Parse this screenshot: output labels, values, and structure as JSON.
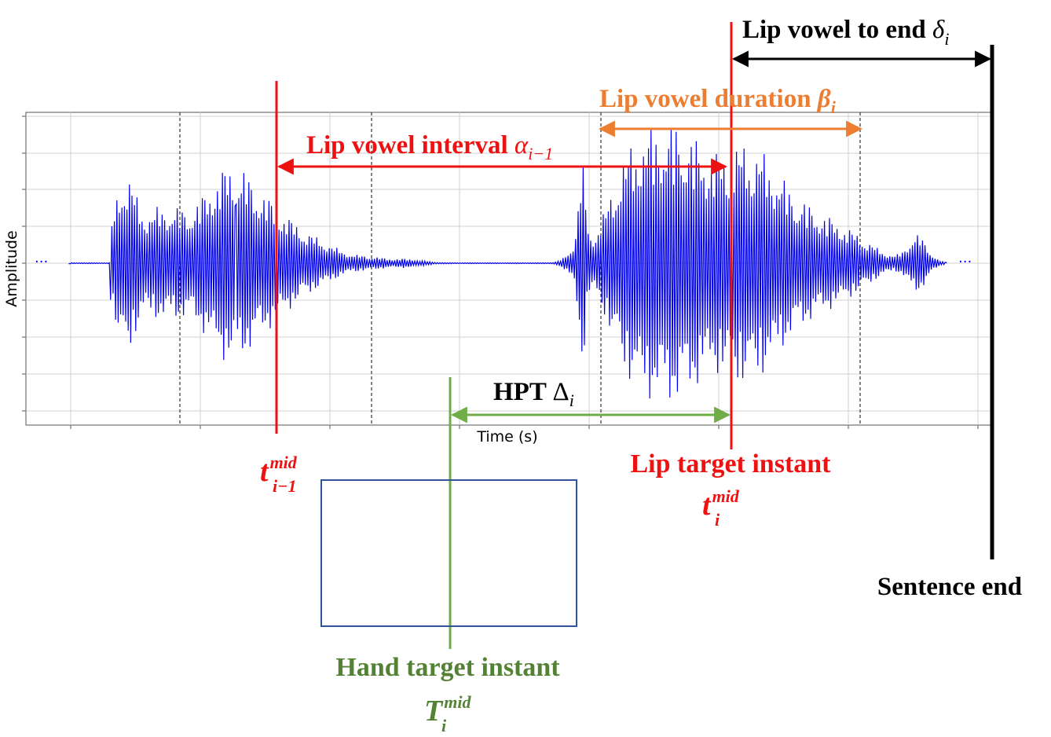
{
  "plot": {
    "ylabel": "Amplitude",
    "xlabel": "Time (s)",
    "ellipsis_left": "···",
    "ellipsis_right": "···"
  },
  "annotations": {
    "lip_vowel_to_end": {
      "text": "Lip vowel to end ",
      "symbol": "δ",
      "sub": "i"
    },
    "lip_vowel_duration": {
      "text": "Lip vowel duration ",
      "symbol": "β",
      "sub": "i"
    },
    "lip_vowel_interval": {
      "text": "Lip vowel interval ",
      "symbol": "α",
      "sub": "i−1"
    },
    "hpt": {
      "text": "HPT ",
      "symbol": "Δ",
      "sub": "i"
    },
    "lip_target_instant": "Lip target instant",
    "hand_target_instant": "Hand target instant",
    "sentence_end": "Sentence end",
    "t_prev": {
      "symbol": "t",
      "sup": "mid",
      "sub": "i−1"
    },
    "t_i": {
      "symbol": "t",
      "sup": "mid",
      "sub": "i"
    },
    "T_i": {
      "symbol": "T",
      "sup": "mid",
      "sub": "i"
    }
  },
  "colors": {
    "waveform": "#0000ee",
    "red": "#ee1111",
    "orange": "#ed7d31",
    "green": "#70ad47",
    "green_text": "#548235",
    "box": "#2f5597",
    "black": "#000000"
  }
}
